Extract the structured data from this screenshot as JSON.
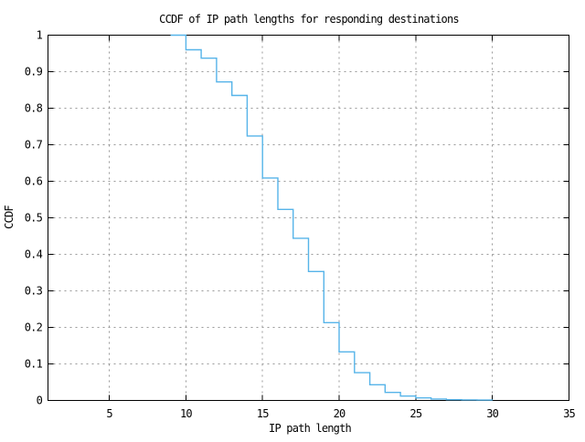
{
  "chart_data": {
    "type": "line",
    "style": "step-post",
    "title": "CCDF of IP path lengths for responding destinations",
    "xlabel": "IP path length",
    "ylabel": "CCDF",
    "xlim": [
      1,
      35
    ],
    "ylim": [
      0,
      1
    ],
    "x_ticks": [
      {
        "v": 5,
        "label": "5"
      },
      {
        "v": 10,
        "label": "10"
      },
      {
        "v": 15,
        "label": "15"
      },
      {
        "v": 20,
        "label": "20"
      },
      {
        "v": 25,
        "label": "25"
      },
      {
        "v": 30,
        "label": "30"
      },
      {
        "v": 35,
        "label": "35"
      }
    ],
    "y_ticks": [
      {
        "v": 0,
        "label": "0"
      },
      {
        "v": 0.1,
        "label": "0.1"
      },
      {
        "v": 0.2,
        "label": "0.2"
      },
      {
        "v": 0.3,
        "label": "0.3"
      },
      {
        "v": 0.4,
        "label": "0.4"
      },
      {
        "v": 0.5,
        "label": "0.5"
      },
      {
        "v": 0.6,
        "label": "0.6"
      },
      {
        "v": 0.7,
        "label": "0.7"
      },
      {
        "v": 0.8,
        "label": "0.8"
      },
      {
        "v": 0.9,
        "label": "0.9"
      },
      {
        "v": 1,
        "label": "1"
      }
    ],
    "grid": true,
    "legend": false,
    "colors": {
      "line": "#56b4e9",
      "grid": "#9a9a9a",
      "axis": "#000000",
      "background": "#ffffff"
    },
    "points": [
      [
        9,
        1.0
      ],
      [
        10,
        0.96
      ],
      [
        11,
        0.937
      ],
      [
        12,
        0.872
      ],
      [
        13,
        0.835
      ],
      [
        14,
        0.724
      ],
      [
        15,
        0.609
      ],
      [
        16,
        0.523
      ],
      [
        17,
        0.444
      ],
      [
        18,
        0.353
      ],
      [
        19,
        0.213
      ],
      [
        20,
        0.133
      ],
      [
        21,
        0.076
      ],
      [
        22,
        0.043
      ],
      [
        23,
        0.022
      ],
      [
        24,
        0.012
      ],
      [
        25,
        0.007
      ],
      [
        26,
        0.004
      ],
      [
        27,
        0.002
      ],
      [
        28,
        0.0015
      ],
      [
        29,
        0.001
      ],
      [
        30,
        0.0005
      ]
    ]
  }
}
